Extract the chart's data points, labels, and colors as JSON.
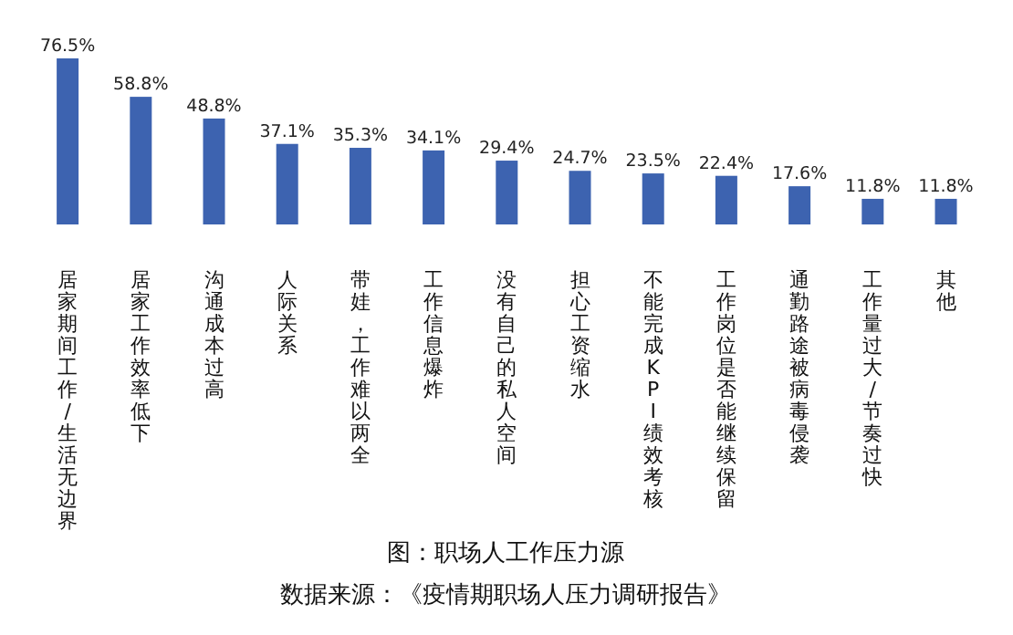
{
  "chart_data": {
    "type": "bar",
    "title": "图：职场人工作压力源",
    "annotations": [
      "数据来源：《疫情期职场人压力调研报告》"
    ],
    "categories": [
      "居家期间工作/生活无边界",
      "居家工作效率低下",
      "沟通成本过高",
      "人际关系",
      "带娃，工作难以两全",
      "工作信息爆炸",
      "没有自己的私人空间",
      "担心工资缩水",
      "不能完成KPI绩效考核",
      "工作岗位是否能继续保留",
      "通勤路途被病毒侵袭",
      "工作量过大/节奏过快",
      "其他"
    ],
    "values": [
      76.5,
      58.8,
      48.8,
      37.1,
      35.3,
      34.1,
      29.4,
      24.7,
      23.5,
      22.4,
      17.6,
      11.8,
      11.8
    ],
    "value_labels": [
      "76.5%",
      "58.8%",
      "48.8%",
      "37.1%",
      "35.3%",
      "34.1%",
      "29.4%",
      "24.7%",
      "23.5%",
      "22.4%",
      "17.6%",
      "11.8%",
      "11.8%"
    ],
    "color": "#3d63b0"
  }
}
